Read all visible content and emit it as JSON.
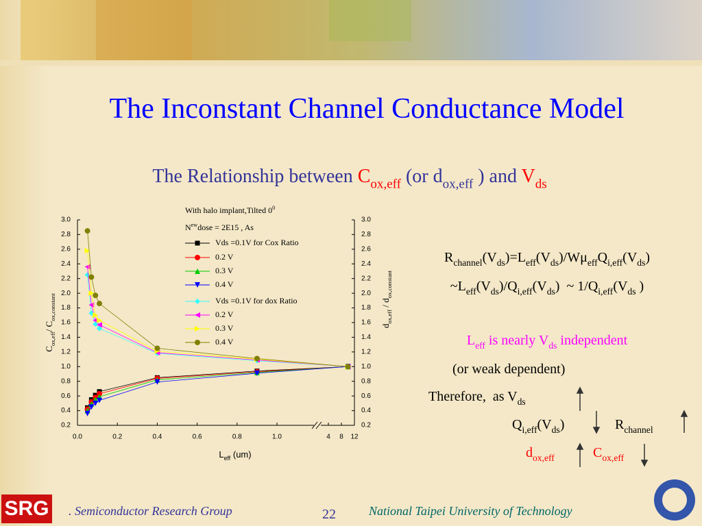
{
  "slide": {
    "title": "The Inconstant Channel Conductance Model",
    "subtitle": [
      "The Relationship between ",
      {
        "text": "C",
        "color": "#ff0000"
      },
      {
        "sub": "ox,eff",
        "color": "#ff0000"
      },
      " (or d",
      {
        "sub": "ox,eff"
      },
      " ) and ",
      {
        "text": "V",
        "color": "#ff0000"
      },
      {
        "sub": "ds",
        "color": "#ff0000"
      }
    ],
    "equations": [
      [
        "R",
        {
          "sub": "channel"
        },
        "(V",
        {
          "sub": "ds"
        },
        ")=L",
        {
          "sub": "eff"
        },
        "(V",
        {
          "sub": "ds"
        },
        ")/Wμ",
        {
          "sub": "eff"
        },
        "Q",
        {
          "sub": "i,eff"
        },
        "(V",
        {
          "sub": "ds"
        },
        ")"
      ],
      [
        "~L",
        {
          "sub": "eff"
        },
        "(V",
        {
          "sub": "ds"
        },
        ")/Q",
        {
          "sub": "i,eff"
        },
        "(V",
        {
          "sub": "ds"
        },
        ")  ~ 1/Q",
        {
          "sub": "i,eff"
        },
        "(V",
        {
          "sub": "ds"
        },
        " )"
      ]
    ],
    "notes": [
      [
        "L",
        {
          "sub": "eff"
        },
        " is nearly V",
        {
          "sub": "ds"
        },
        " independent"
      ],
      [
        "(or weak dependent)"
      ],
      [
        "Therefore,  as V",
        {
          "sub": "ds"
        }
      ],
      [
        "Q",
        {
          "sub": "i,eff"
        },
        "(V",
        {
          "sub": "ds"
        },
        ")"
      ],
      [
        "R",
        {
          "sub": "channel"
        }
      ],
      [
        "d",
        {
          "sub": "ox,eff"
        }
      ],
      [
        "C",
        {
          "sub": "ox,eff"
        }
      ]
    ],
    "footer": {
      "group": ". Semiconductor Research Group",
      "page": "22",
      "university": "National Taipei University of Technology",
      "logo": "SRG"
    }
  },
  "chart_data": {
    "type": "line",
    "annotations": [
      [
        "With halo implant,Tilted 0",
        {
          "sup": "0"
        }
      ],
      [
        "N",
        {
          "sup": "ew"
        },
        "dose = 2E15 , As"
      ]
    ],
    "x_label": [
      "L",
      {
        "sub": "eff"
      },
      " (um)"
    ],
    "y_label": [
      "C",
      {
        "sub": "ox,eff"
      },
      "/ C",
      {
        "sub": "ox,constant"
      }
    ],
    "y2_label": [
      "d",
      {
        "sub": "ox,eff"
      },
      " / d",
      {
        "sub": "ox,constant"
      }
    ],
    "x": [
      0.05,
      0.07,
      0.09,
      0.11,
      0.4,
      0.9,
      10
    ],
    "xlim": [
      0,
      12
    ],
    "xticks": [
      {
        "value": 0,
        "label": "0.0"
      },
      0.2,
      0.4,
      0.6,
      0.8,
      {
        "value": 1,
        "label": "1.0"
      },
      4,
      8,
      12
    ],
    "ylim": [
      0.2,
      3.0
    ],
    "yticks": [
      0.2,
      0.4,
      0.6,
      0.8,
      {
        "value": 1,
        "label": "1.0"
      },
      1.2,
      1.4,
      1.6,
      1.8,
      {
        "value": 2,
        "label": "2.0"
      },
      2.2,
      2.4,
      2.6,
      2.8,
      {
        "value": 3,
        "label": "3.0"
      }
    ],
    "y2lim": [
      0.2,
      3.0
    ],
    "y2ticks": [
      0.2,
      0.4,
      0.6,
      0.8,
      {
        "value": 1,
        "label": "1.0"
      },
      1.2,
      1.4,
      1.6,
      1.8,
      {
        "value": 2,
        "label": "2.0"
      },
      2.2,
      2.4,
      2.6,
      2.8,
      {
        "value": 3,
        "label": "3.0"
      }
    ],
    "series": [
      {
        "name": "Vds =0.1V for Cox Ratio",
        "color": "#000000",
        "marker": "square",
        "values": [
          0.44,
          0.55,
          0.61,
          0.66,
          0.85,
          0.94,
          1.0
        ]
      },
      {
        "name": "0.2 V",
        "color": "#ff0000",
        "marker": "circle",
        "values": [
          0.42,
          0.52,
          0.58,
          0.63,
          0.84,
          0.93,
          1.0
        ]
      },
      {
        "name": "0.3 V",
        "color": "#00cc00",
        "marker": "triangle-up",
        "values": [
          0.4,
          0.49,
          0.55,
          0.59,
          0.82,
          0.92,
          1.0
        ]
      },
      {
        "name": "0.4 V",
        "color": "#0000ff",
        "marker": "triangle-down",
        "values": [
          0.36,
          0.45,
          0.5,
          0.54,
          0.79,
          0.91,
          1.0
        ]
      },
      {
        "name": "Vds =0.1V for dox Ratio",
        "color": "#33ffff",
        "marker": "diamond",
        "axis": "y2",
        "values": [
          2.25,
          1.73,
          1.58,
          1.52,
          1.18,
          1.08,
          1.0
        ]
      },
      {
        "name": "0.2 V",
        "color": "#ff00ff",
        "marker": "triangle-left",
        "axis": "y2",
        "values": [
          2.36,
          1.84,
          1.63,
          1.57,
          1.19,
          1.09,
          1.0
        ]
      },
      {
        "name": "0.3 V",
        "color": "#ffff00",
        "marker": "triangle-right",
        "axis": "y2",
        "values": [
          2.58,
          2.0,
          1.7,
          1.63,
          1.21,
          1.1,
          1.0
        ]
      },
      {
        "name": "0.4 V",
        "color": "#808000",
        "marker": "circle",
        "axis": "y2",
        "values": [
          2.85,
          2.22,
          1.97,
          1.86,
          1.25,
          1.11,
          1.0
        ]
      }
    ]
  }
}
